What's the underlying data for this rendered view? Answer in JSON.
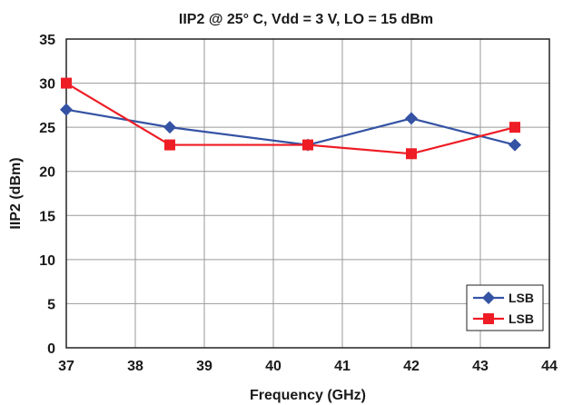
{
  "chart_data": {
    "type": "line",
    "title": "IIP2 @ 25° C, Vdd = 3 V, LO = 15 dBm",
    "xlabel": "Frequency (GHz)",
    "ylabel": "IIP2 (dBm)",
    "xlim": [
      37,
      44
    ],
    "ylim": [
      0,
      35
    ],
    "xticks": [
      "37",
      "38",
      "39",
      "40",
      "41",
      "42",
      "43",
      "44"
    ],
    "yticks": [
      "0",
      "5",
      "10",
      "15",
      "20",
      "25",
      "30",
      "35"
    ],
    "grid": true,
    "legend_position": "bottom-right",
    "series": [
      {
        "name": "LSB",
        "color": "#3553a4",
        "marker": "diamond",
        "x": [
          37,
          38.5,
          40.5,
          42,
          43.5
        ],
        "y": [
          27,
          25,
          23,
          26,
          23
        ]
      },
      {
        "name": "LSB",
        "color": "#ee1c25",
        "marker": "square",
        "x": [
          37,
          38.5,
          40.5,
          42,
          43.5
        ],
        "y": [
          30,
          23,
          23,
          22,
          25
        ]
      }
    ]
  }
}
